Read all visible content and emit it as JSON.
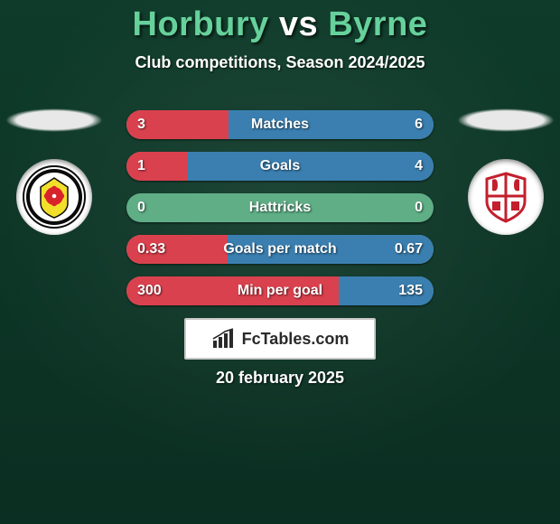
{
  "title": {
    "player1": "Horbury",
    "vs": "vs",
    "player2": "Byrne",
    "color_p1": "#66d19b",
    "color_vs": "#ffffff",
    "color_p2": "#66d19b",
    "fontsize": 38
  },
  "subtitle": "Club competitions, Season 2024/2025",
  "bars": {
    "left_color": "#da414e",
    "right_color": "#3a7fb0",
    "track_width": 340,
    "track_height": 32,
    "gap": 14,
    "radius": 16,
    "label_color": "#ffffff",
    "label_fontsize": 16,
    "rows": [
      {
        "label": "Matches",
        "left": "3",
        "right": "6",
        "left_frac": 0.333,
        "right_frac": 0.667
      },
      {
        "label": "Goals",
        "left": "1",
        "right": "4",
        "left_frac": 0.2,
        "right_frac": 0.8
      },
      {
        "label": "Hattricks",
        "left": "0",
        "right": "0",
        "left_frac": 0.0,
        "right_frac": 0.0
      },
      {
        "label": "Goals per match",
        "left": "0.33",
        "right": "0.67",
        "left_frac": 0.33,
        "right_frac": 0.67
      },
      {
        "label": "Min per goal",
        "left": "300",
        "right": "135",
        "left_frac": 0.69,
        "right_frac": 0.31
      }
    ],
    "empty_track_color": "#5fae86"
  },
  "crests": {
    "left": {
      "name": "chorley-crest",
      "bg": "#ffffff",
      "accent1": "#0b0b0b",
      "accent2": "#f2df2c",
      "accent3": "#d8232a"
    },
    "right": {
      "name": "opponent-crest",
      "bg": "#ffffff",
      "accent1": "#c31f2d",
      "accent2": "#ffffff"
    }
  },
  "brand": "FcTables.com",
  "brand_box": {
    "bg": "#ffffff",
    "border": "#c7c7c7",
    "text_color": "#2a2a2a",
    "icon_color": "#2a2a2a"
  },
  "date": "20 february 2025",
  "background": {
    "top": "#0e3b2a",
    "bottom": "#0b2f22"
  }
}
